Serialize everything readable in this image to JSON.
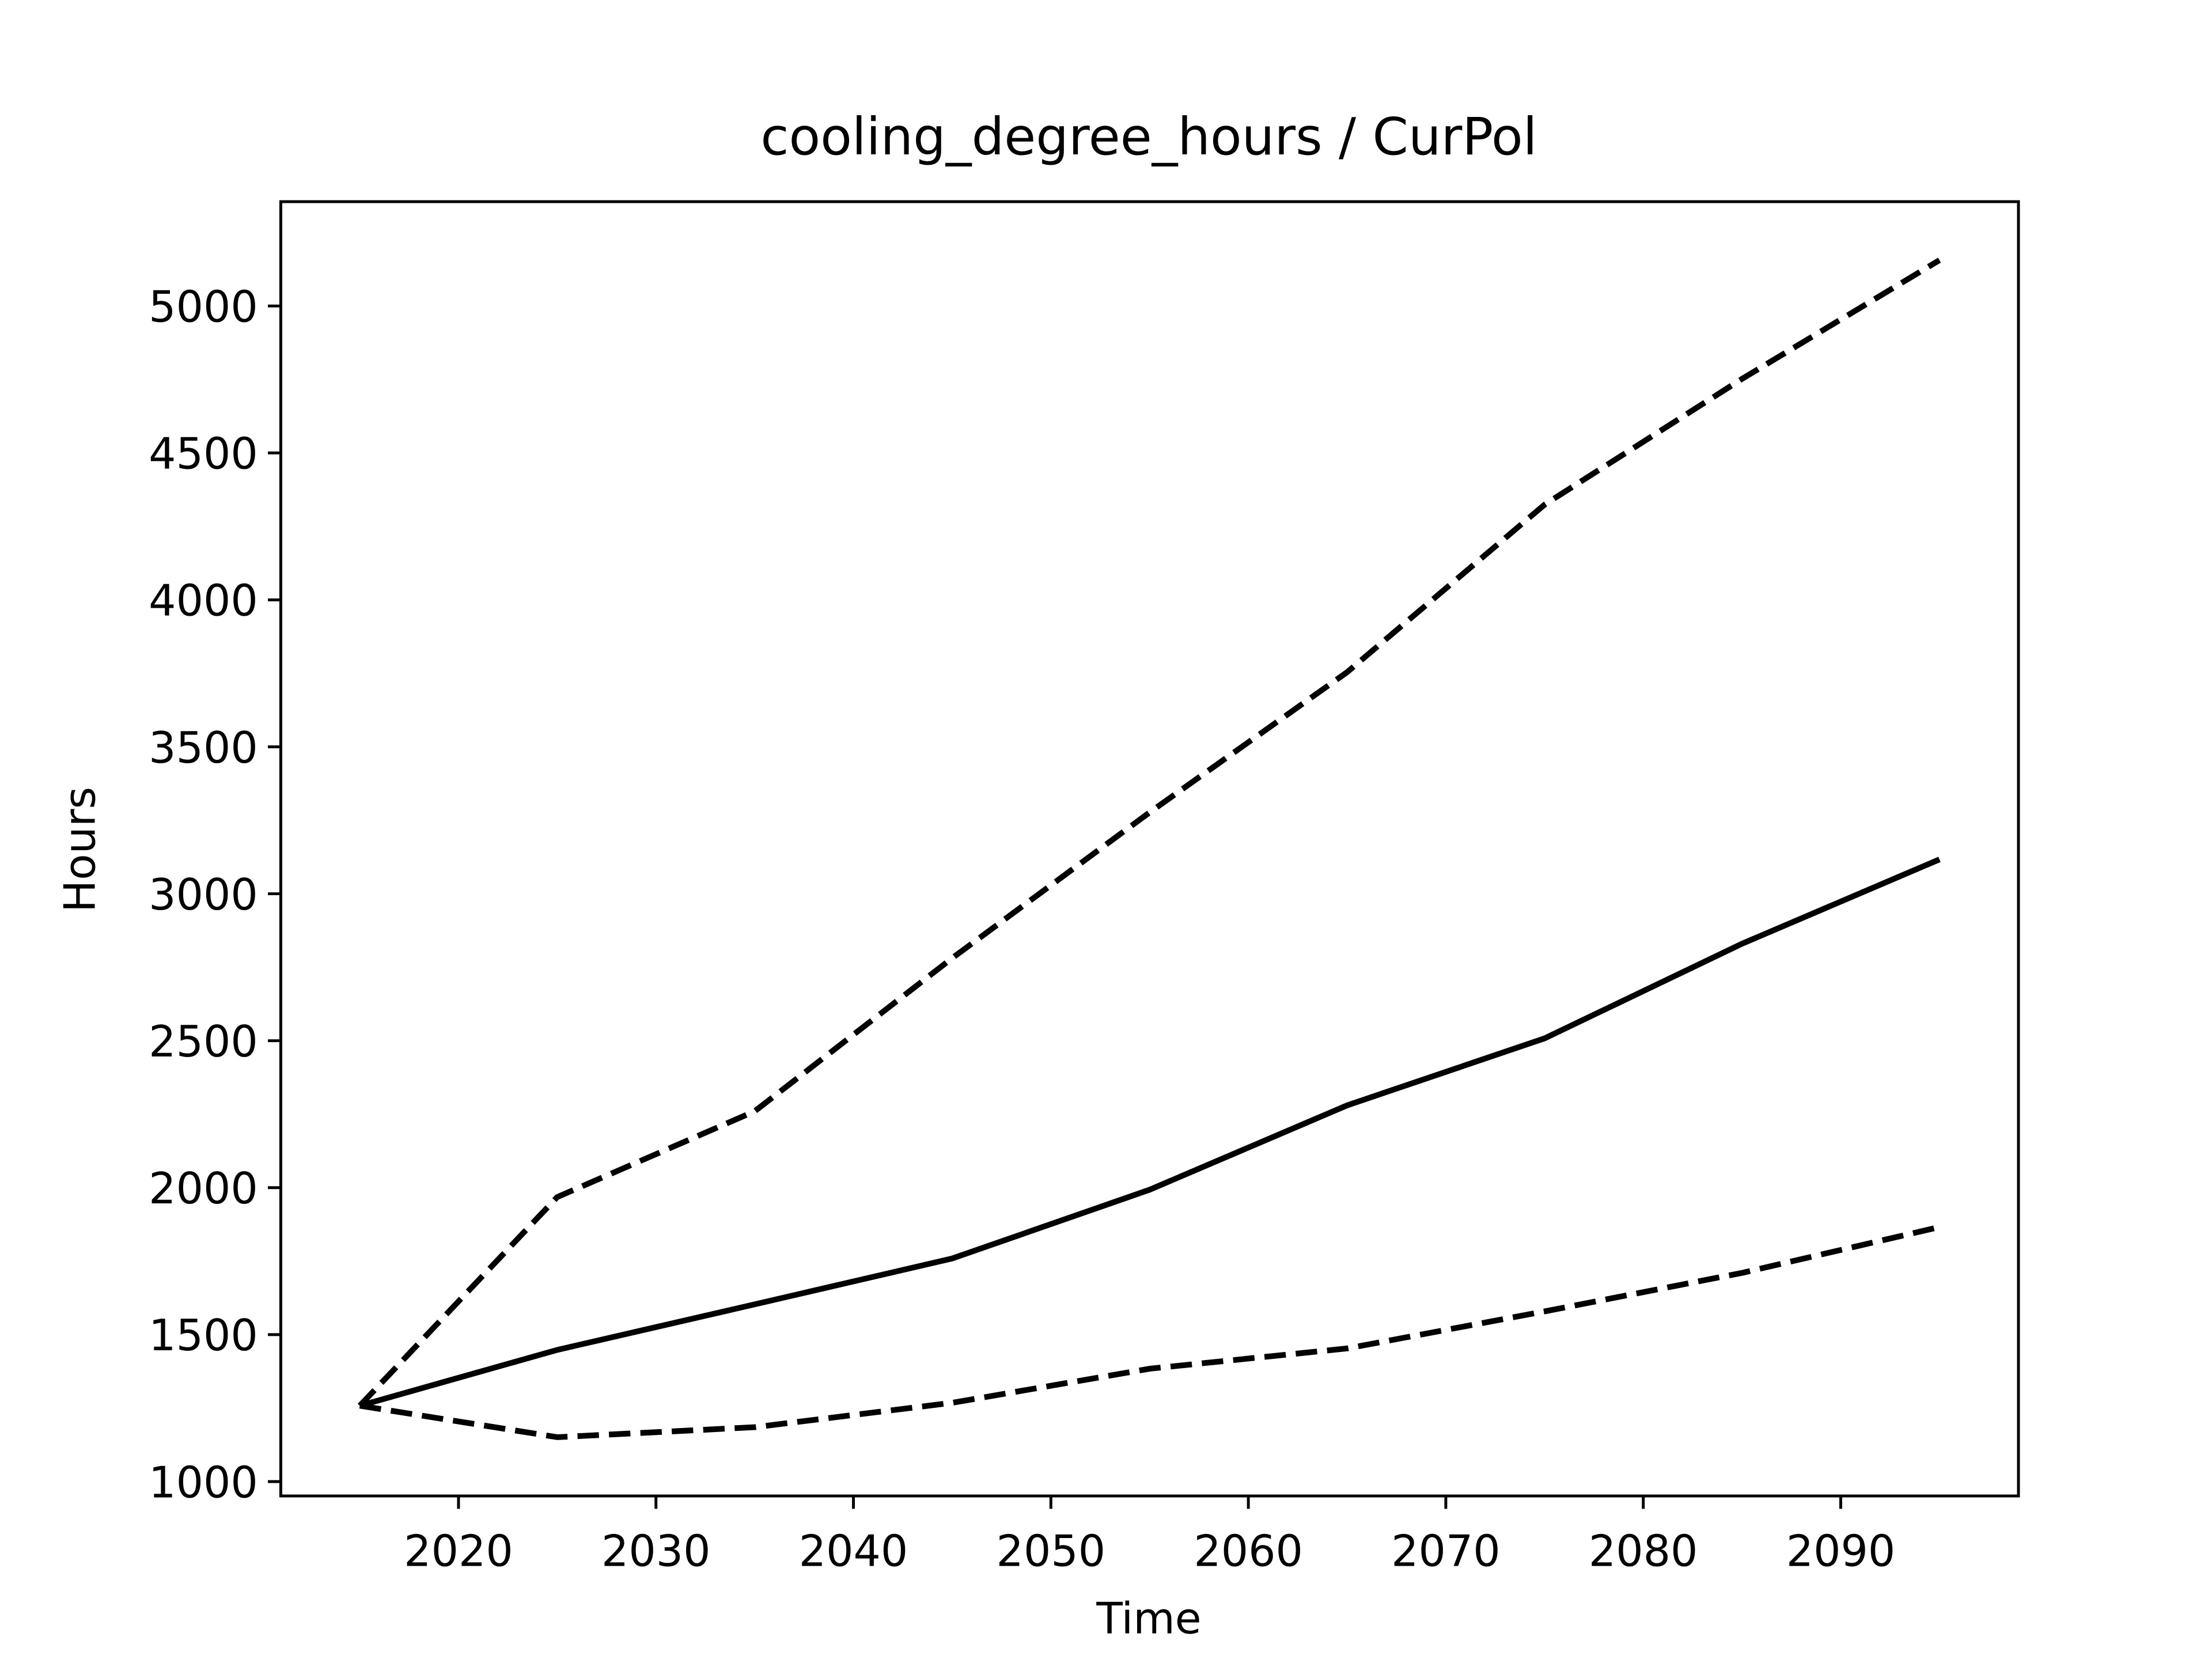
{
  "chart_data": {
    "type": "line",
    "title": "cooling_degree_hours / CurPol",
    "xlabel": "Time",
    "ylabel": "Hours",
    "x": [
      2015,
      2025,
      2035,
      2045,
      2055,
      2065,
      2075,
      2085,
      2095
    ],
    "series": [
      {
        "color": "#000000",
        "linestyle": "solid",
        "values": [
          1258,
          1448,
          1603,
          1759,
          1993,
          2280,
          2508,
          2830,
          3117
        ]
      },
      {
        "color": "#000000",
        "linestyle": "dashed",
        "values": [
          1258,
          1968,
          2260,
          2781,
          3277,
          3754,
          4324,
          4752,
          5156
        ]
      },
      {
        "color": "#000000",
        "linestyle": "dashed",
        "values": [
          1258,
          1151,
          1185,
          1268,
          1384,
          1453,
          1579,
          1710,
          1866
        ]
      }
    ],
    "xlim": [
      2011,
      2099
    ],
    "ylim": [
      951,
      5355
    ],
    "xticks": [
      2020,
      2030,
      2040,
      2050,
      2060,
      2070,
      2080,
      2090
    ],
    "yticks": [
      1000,
      1500,
      2000,
      2500,
      3000,
      3500,
      4000,
      4500,
      5000
    ],
    "grid": false
  }
}
